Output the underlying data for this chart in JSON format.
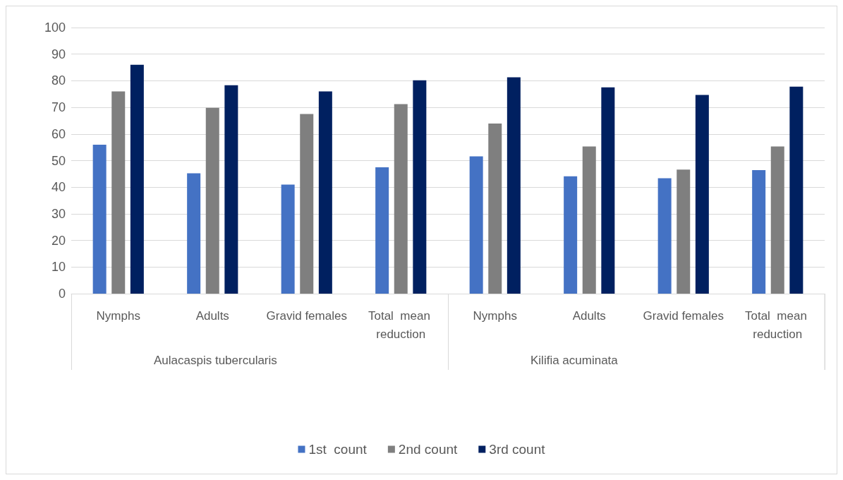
{
  "chart_data": {
    "type": "bar",
    "categories": [
      "Nymphs",
      "Adults",
      "Gravid females",
      "Total  mean reduction",
      "Nymphs",
      "Adults",
      "Gravid females",
      "Total  mean reduction"
    ],
    "series": [
      {
        "name": "1st  count",
        "color": "#4472c4",
        "values": [
          56,
          45.2,
          41,
          47.5,
          51.6,
          44.1,
          43.4,
          46.4
        ]
      },
      {
        "name": "2nd count",
        "color": "#7f7f7f",
        "values": [
          76,
          69.8,
          67.5,
          71.2,
          63.9,
          55.3,
          46.6,
          55.3
        ]
      },
      {
        "name": "3rd count",
        "color": "#002060",
        "values": [
          86,
          78.3,
          76,
          80.2,
          81.3,
          77.5,
          74.7,
          77.8
        ]
      }
    ],
    "annotations": [
      "Aulacaspis tubercularis",
      "Kilifia acuminata"
    ],
    "ylim": [
      0,
      100
    ],
    "yticks": [
      0,
      10,
      20,
      30,
      40,
      50,
      60,
      70,
      80,
      90,
      100
    ],
    "grid": "y",
    "legend": "bottom"
  }
}
